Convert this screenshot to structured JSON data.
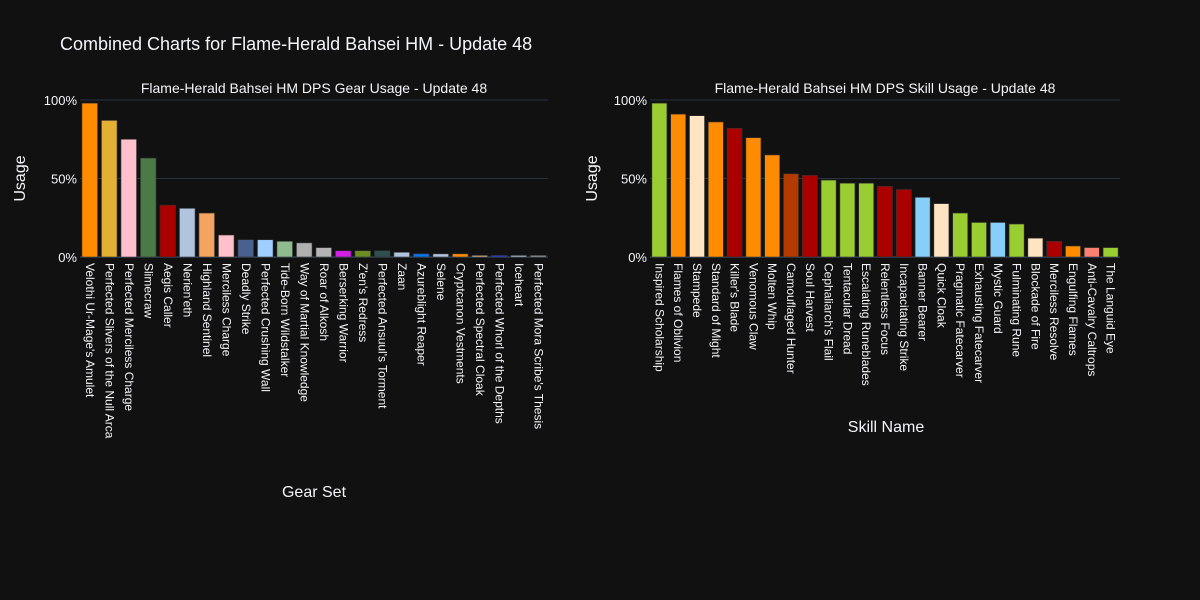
{
  "title": "Combined Charts for Flame-Herald Bahsei HM - Update 48",
  "chart_data": [
    {
      "type": "bar",
      "title": "Flame-Herald Bahsei HM DPS Gear Usage - Update 48",
      "xlabel": "Gear Set",
      "ylabel": "Usage",
      "ylim": [
        0,
        100
      ],
      "yticks": [
        "0%",
        "50%",
        "100%"
      ],
      "grid": true,
      "categories": [
        "Velothi Ur-Mage's Amulet",
        "Perfected Slivers of the Null Arca",
        "Perfected Merciless Charge",
        "Slimecraw",
        "Aegis Caller",
        "Nerien'eth",
        "Highland Sentinel",
        "Merciless Charge",
        "Deadly Strike",
        "Perfected Crushing Wall",
        "Tide-Born Wildstalker",
        "Way of Martial Knowledge",
        "Roar of Alkosh",
        "Berserking Warrior",
        "Z'en's Redress",
        "Perfected Ansuul's Torment",
        "Zaan",
        "Azureblight Reaper",
        "Selene",
        "Cryptcanon Vestments",
        "Perfected Spectral Cloak",
        "Perfected Whorl of the Depths",
        "Iceheart",
        "Perfected Mora Scribe's Thesis"
      ],
      "values": [
        98,
        87,
        75,
        63,
        33,
        31,
        28,
        14,
        11,
        11,
        10,
        9,
        6,
        4,
        4,
        4,
        3,
        2,
        2,
        2,
        1,
        1,
        1,
        1
      ],
      "colors": [
        "#ff8c00",
        "#e3b034",
        "#ffc0cb",
        "#4a7a45",
        "#aa0000",
        "#b0c4de",
        "#f4a460",
        "#ffc0cb",
        "#48618f",
        "#9fcfff",
        "#8fbc8f",
        "#b0b0b0",
        "#b4b4b4",
        "#d51ee6",
        "#6b8e23",
        "#2f4f4f",
        "#b0c4de",
        "#0a74f0",
        "#b0c4de",
        "#ff8c00",
        "#deb887",
        "#2a3ce0",
        "#b0c4de",
        "#a0a0a0"
      ]
    },
    {
      "type": "bar",
      "title": "Flame-Herald Bahsei HM DPS Skill Usage - Update 48",
      "xlabel": "Skill Name",
      "ylabel": "Usage",
      "ylim": [
        0,
        100
      ],
      "yticks": [
        "0%",
        "50%",
        "100%"
      ],
      "grid": true,
      "categories": [
        "Inspired Scholarship",
        "Flames of Oblivion",
        "Stampede",
        "Standard of Might",
        "Killer's Blade",
        "Venomous Claw",
        "Molten Whip",
        "Camouflaged Hunter",
        "Soul Harvest",
        "Cephaliarch's Flail",
        "Tentacular Dread",
        "Escalating Runeblades",
        "Relentless Focus",
        "Incapacitating Strike",
        "Banner Bearer",
        "Quick Cloak",
        "Pragmatic Fatecarver",
        "Exhausting Fatecarver",
        "Mystic Guard",
        "Fulminating Rune",
        "Blockade of Fire",
        "Merciless Resolve",
        "Engulfing Flames",
        "Anti-Cavalry Caltrops",
        "The Languid Eye"
      ],
      "values": [
        98,
        91,
        90,
        86,
        82,
        76,
        65,
        53,
        52,
        49,
        47,
        47,
        45,
        43,
        38,
        34,
        28,
        22,
        22,
        21,
        12,
        10,
        7,
        6,
        6
      ],
      "colors": [
        "#9acd32",
        "#ff8c00",
        "#ffe4c4",
        "#ff8c00",
        "#aa0000",
        "#ff8c00",
        "#ff8c00",
        "#b33a00",
        "#aa0000",
        "#9acd32",
        "#9acd32",
        "#9acd32",
        "#aa0000",
        "#aa0000",
        "#87cefa",
        "#ffe4c4",
        "#9acd32",
        "#9acd32",
        "#87cefa",
        "#9acd32",
        "#ffe4c4",
        "#aa0000",
        "#ff8c00",
        "#fa8072",
        "#9acd32"
      ]
    }
  ]
}
